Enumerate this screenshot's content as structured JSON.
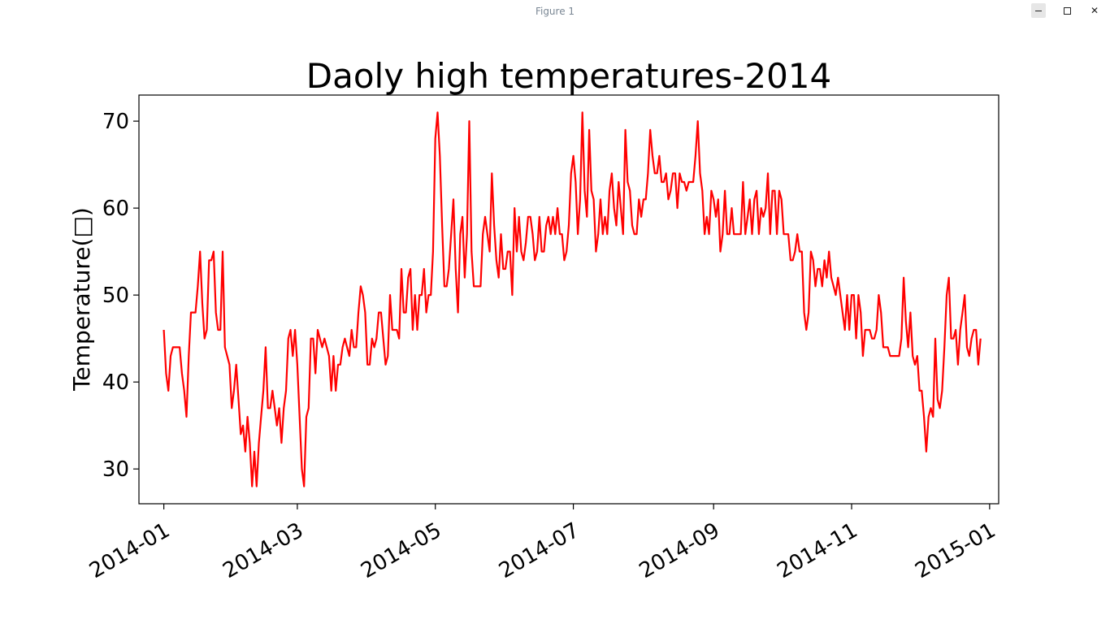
{
  "window": {
    "title": "Figure 1",
    "minimize_icon": "minimize-icon",
    "maximize_icon": "maximize-icon",
    "close_icon": "close-icon",
    "close_glyph": "✕"
  },
  "chart_data": {
    "type": "line",
    "title": "Daoly high temperatures-2014",
    "xlabel": "",
    "ylabel": "Temperature(□)",
    "color": "#ff0000",
    "grid": false,
    "start_date": "2014-01-01",
    "xlim": [
      "2013-12-21",
      "2015-01-05"
    ],
    "ylim": [
      26,
      73
    ],
    "y_ticks": [
      30,
      40,
      50,
      60,
      70
    ],
    "x_ticks": [
      "2014-01",
      "2014-03",
      "2014-05",
      "2014-07",
      "2014-09",
      "2014-11",
      "2015-01"
    ],
    "x_tick_dates": [
      "2014-01-01",
      "2014-03-01",
      "2014-05-01",
      "2014-07-01",
      "2014-09-01",
      "2014-11-01",
      "2015-01-01"
    ],
    "series": [
      {
        "values": [
          46,
          41,
          39,
          43,
          44,
          44,
          44,
          44,
          41,
          39,
          36,
          43,
          48,
          48,
          48,
          51,
          55,
          49,
          45,
          46,
          54,
          54,
          55,
          48,
          46,
          46,
          55,
          44,
          43,
          42,
          37,
          39,
          42,
          38,
          34,
          35,
          32,
          36,
          33,
          28,
          32,
          28,
          33,
          36,
          39,
          44,
          37,
          37,
          39,
          37,
          35,
          37,
          33,
          37,
          39,
          45,
          46,
          43,
          46,
          42,
          36,
          30,
          28,
          36,
          37,
          45,
          45,
          41,
          46,
          45,
          44,
          45,
          44,
          43,
          39,
          43,
          39,
          42,
          42,
          44,
          45,
          44,
          43,
          46,
          44,
          44,
          48,
          51,
          50,
          48,
          42,
          42,
          45,
          44,
          45,
          48,
          48,
          45,
          42,
          43,
          50,
          46,
          46,
          46,
          45,
          53,
          48,
          48,
          52,
          53,
          46,
          50,
          46,
          50,
          50,
          53,
          48,
          50,
          50,
          55,
          68,
          71,
          66,
          58,
          51,
          51,
          53,
          57,
          61,
          53,
          48,
          57,
          59,
          52,
          57,
          70,
          55,
          51,
          51,
          51,
          51,
          57,
          59,
          57,
          55,
          64,
          58,
          54,
          52,
          57,
          53,
          53,
          55,
          55,
          50,
          60,
          55,
          59,
          55,
          54,
          56,
          59,
          59,
          57,
          54,
          55,
          59,
          55,
          55,
          58,
          59,
          57,
          59,
          57,
          60,
          57,
          57,
          54,
          55,
          58,
          64,
          66,
          63,
          57,
          61,
          71,
          62,
          59,
          69,
          62,
          61,
          55,
          57,
          61,
          57,
          59,
          57,
          62,
          64,
          60,
          58,
          63,
          60,
          57,
          69,
          63,
          62,
          58,
          57,
          57,
          61,
          59,
          61,
          61,
          64,
          69,
          66,
          64,
          64,
          66,
          63,
          63,
          64,
          61,
          62,
          64,
          64,
          60,
          64,
          63,
          63,
          62,
          63,
          63,
          63,
          66,
          70,
          64,
          62,
          57,
          59,
          57,
          62,
          61,
          59,
          61,
          55,
          57,
          62,
          57,
          57,
          60,
          57,
          57,
          57,
          57,
          63,
          57,
          59,
          61,
          57,
          61,
          62,
          57,
          60,
          59,
          60,
          64,
          57,
          62,
          62,
          57,
          62,
          61,
          57,
          57,
          57,
          54,
          54,
          55,
          57,
          55,
          55,
          48,
          46,
          48,
          55,
          54,
          51,
          53,
          53,
          51,
          54,
          52,
          55,
          52,
          51,
          50,
          52,
          50,
          48,
          46,
          50,
          46,
          50,
          50,
          45,
          50,
          48,
          43,
          46,
          46,
          46,
          45,
          45,
          46,
          50,
          48,
          44,
          44,
          44,
          43,
          43,
          43,
          43,
          43,
          45,
          52,
          47,
          44,
          48,
          43,
          42,
          43,
          39,
          39,
          36,
          32,
          36,
          37,
          36,
          45,
          38,
          37,
          39,
          44,
          50,
          52,
          45,
          45,
          46,
          42,
          46,
          48,
          50,
          44,
          43,
          45,
          46,
          46,
          42,
          45
        ]
      }
    ]
  }
}
